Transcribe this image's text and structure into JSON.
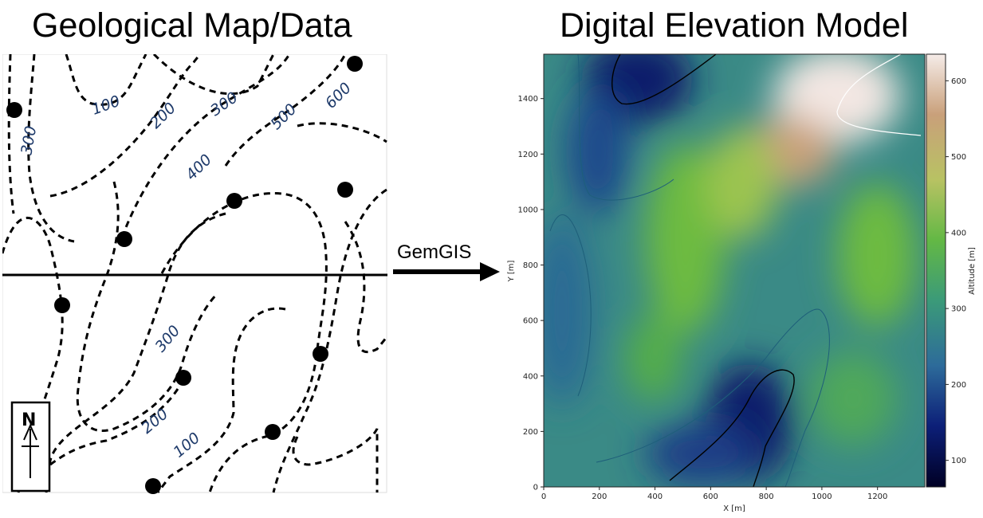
{
  "titles": {
    "left": "Geological Map/Data",
    "right": "Digital Elevation Model"
  },
  "arrow_label": "GemGIS",
  "map": {
    "contour_labels": [
      "100",
      "200",
      "300",
      "400",
      "500",
      "600",
      "300",
      "300",
      "200",
      "100"
    ],
    "north_label": "N"
  },
  "chart_data": {
    "type": "heatmap",
    "xlabel": "X [m]",
    "ylabel": "Y [m]",
    "colorbar_label": "Altitude [m]",
    "xlim": [
      0,
      1370
    ],
    "ylim": [
      0,
      1560
    ],
    "xticks": [
      0,
      200,
      400,
      600,
      800,
      1000,
      1200
    ],
    "yticks": [
      0,
      200,
      400,
      600,
      800,
      1000,
      1200,
      1400
    ],
    "clim": [
      65,
      635
    ],
    "colorbar_ticks": [
      100,
      200,
      300,
      400,
      500,
      600
    ],
    "colormap": [
      "#000024",
      "#0c1f78",
      "#2d6b9a",
      "#3b9a79",
      "#63b845",
      "#b8c263",
      "#c9a07a",
      "#f5ece8"
    ]
  }
}
